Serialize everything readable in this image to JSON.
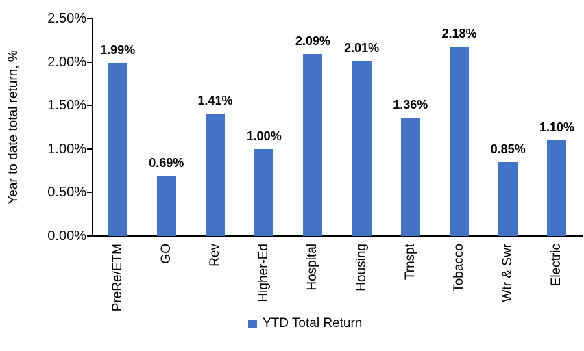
{
  "chart_data": {
    "type": "bar",
    "title": "",
    "xlabel": "",
    "ylabel": "Year to date total return, %",
    "categories": [
      "PreRe/ETM",
      "GO",
      "Rev",
      "Higher-Ed",
      "Hospital",
      "Housing",
      "Trnspt",
      "Tobacco",
      "Wtr & Swr",
      "Electric"
    ],
    "series": [
      {
        "name": "YTD Total Return",
        "values": [
          1.99,
          0.69,
          1.41,
          1.0,
          2.09,
          2.01,
          1.36,
          2.18,
          0.85,
          1.1
        ]
      }
    ],
    "value_labels": [
      "1.99%",
      "0.69%",
      "1.41%",
      "1.00%",
      "2.09%",
      "2.01%",
      "1.36%",
      "2.18%",
      "0.85%",
      "1.10%"
    ],
    "y_ticks": [
      "0.00%",
      "0.50%",
      "1.00%",
      "1.50%",
      "2.00%",
      "2.50%"
    ],
    "ylim": [
      0,
      2.5
    ],
    "grid": false,
    "legend_position": "bottom",
    "bar_color": "#4472C4",
    "axis_color": "#000000"
  },
  "axis": {
    "y_label": "Year to date total return, %"
  },
  "legend": {
    "label": "YTD Total Return"
  }
}
